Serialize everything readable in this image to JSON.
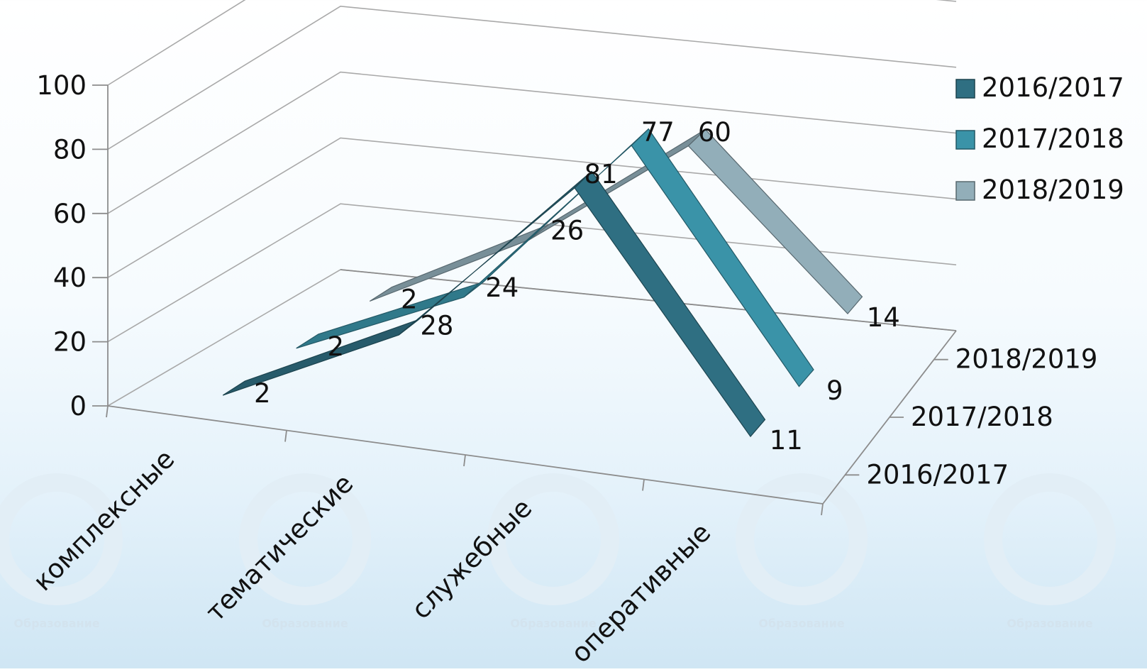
{
  "chart_data": {
    "type": "line",
    "categories": [
      "комплексные",
      "тематические",
      "служебные",
      "оперативные"
    ],
    "series": [
      {
        "name": "2016/2017",
        "values": [
          2,
          28,
          81,
          11
        ],
        "color": "#2f6f82"
      },
      {
        "name": "2017/2018",
        "values": [
          2,
          24,
          77,
          9
        ],
        "color": "#3a93a8"
      },
      {
        "name": "2018/2019",
        "values": [
          2,
          26,
          60,
          14
        ],
        "color": "#92aeb9"
      }
    ],
    "depth_labels": [
      "2016/2017",
      "2017/2018",
      "2018/2019"
    ],
    "legend": {
      "placement": "right",
      "entries": [
        "2016/2017",
        "2017/2018",
        "2018/2019"
      ]
    },
    "yticks": [
      "0",
      "20",
      "40",
      "60",
      "80",
      "100"
    ],
    "ylim": [
      0,
      100
    ],
    "grid": true,
    "style": "3d-ribbon-line",
    "watermark_text": "Образование"
  }
}
